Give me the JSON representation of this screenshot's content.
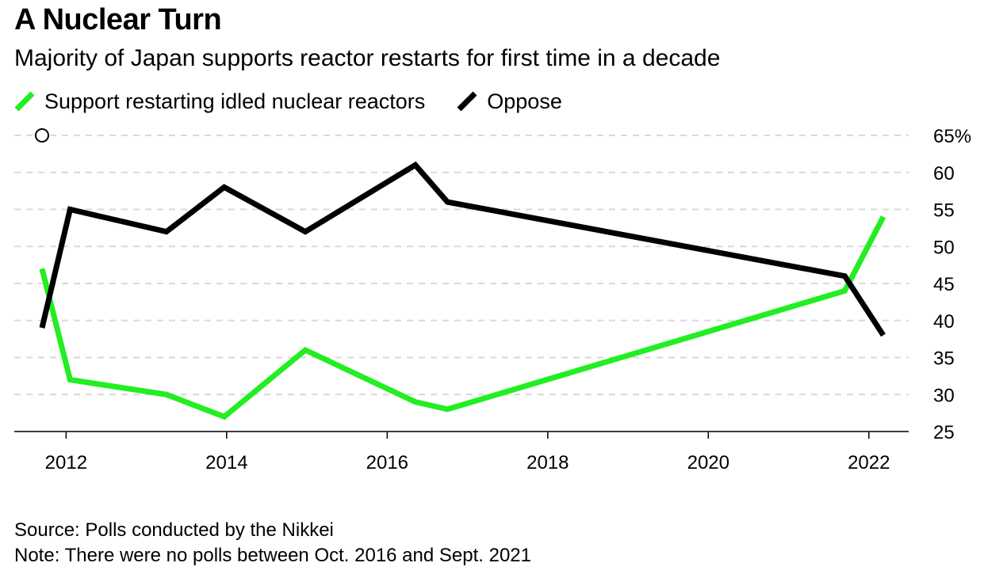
{
  "header": {
    "title": "A Nuclear Turn",
    "subtitle": "Majority of Japan supports reactor restarts for first time in a decade"
  },
  "legend": {
    "support_label": "Support restarting idled nuclear reactors",
    "oppose_label": "Oppose"
  },
  "colors": {
    "support": "#22ee22",
    "oppose": "#000000",
    "grid": "#d9d9d9"
  },
  "footer": {
    "source": "Source: Polls conducted by the Nikkei",
    "note": "Note: There were no polls between Oct. 2016 and Sept. 2021"
  },
  "chart_data": {
    "type": "line",
    "title": "A Nuclear Turn",
    "subtitle": "Majority of Japan supports reactor restarts for first time in a decade",
    "xlabel": "",
    "ylabel": "%",
    "xlim": [
      2011.35,
      2022.45
    ],
    "ylim": [
      25,
      65
    ],
    "x_ticks": [
      2012,
      2014,
      2016,
      2018,
      2020,
      2022
    ],
    "x_tick_labels": [
      "2012",
      "2014",
      "2016",
      "2018",
      "2020",
      "2022"
    ],
    "y_ticks": [
      25,
      30,
      35,
      40,
      45,
      50,
      55,
      60,
      65
    ],
    "y_tick_labels": [
      "25",
      "30",
      "35",
      "40",
      "45",
      "50",
      "55",
      "60",
      "65%"
    ],
    "grid": true,
    "legend_position": "top-left",
    "series": [
      {
        "name": "Support restarting idled nuclear reactors",
        "x": [
          2011.7,
          2012.05,
          2013.25,
          2013.97,
          2014.98,
          2016.35,
          2016.75,
          2021.7,
          2022.18
        ],
        "values": [
          47,
          32,
          30,
          27,
          36,
          29,
          28,
          44,
          54
        ]
      },
      {
        "name": "Oppose",
        "x": [
          2011.7,
          2012.05,
          2013.25,
          2013.97,
          2014.98,
          2016.35,
          2016.75,
          2021.7,
          2022.18
        ],
        "values": [
          39,
          55,
          52,
          58,
          52,
          61,
          56,
          46,
          38
        ]
      }
    ],
    "annotations": [
      {
        "type": "open-circle",
        "x": 2011.7,
        "y": 65
      }
    ]
  }
}
